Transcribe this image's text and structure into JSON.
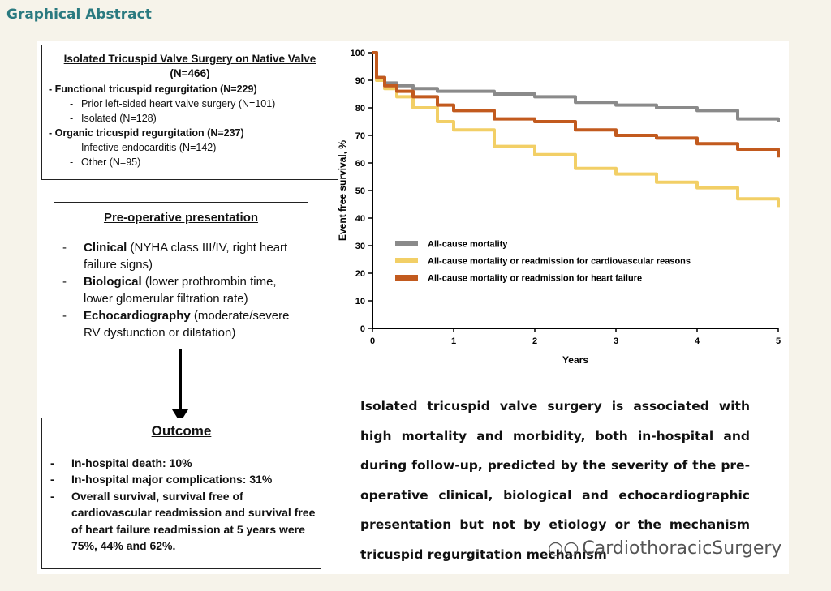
{
  "heading": "Graphical Abstract",
  "cohort": {
    "title": "Isolated Tricuspid Valve Surgery on Native Valve",
    "n": "(N=466)",
    "groups": [
      {
        "label": "- Functional tricuspid regurgitation (N=229)",
        "items": [
          "Prior left-sided heart valve surgery (N=101)",
          "Isolated (N=128)"
        ]
      },
      {
        "label": "- Organic tricuspid regurgitation (N=237)",
        "items": [
          "Infective endocarditis (N=142)",
          "Other (N=95)"
        ]
      }
    ]
  },
  "presentation": {
    "title": "Pre-operative presentation",
    "items": [
      {
        "bold": "Clinical",
        "rest": " (NYHA class III/IV, right heart failure signs)"
      },
      {
        "bold": "Biological",
        "rest": " (lower prothrombin time, lower glomerular filtration rate)"
      },
      {
        "bold": "Echocardiography",
        "rest": " (moderate/severe RV dysfunction or dilatation)"
      }
    ]
  },
  "outcome": {
    "title": "Outcome",
    "items": [
      "In-hospital death: 10%",
      "In-hospital major complications: 31%",
      "Overall survival, survival free of cardiovascular readmission and survival free of heart failure readmission at 5 years were 75%, 44% and 62%."
    ]
  },
  "chart_data": {
    "type": "line",
    "xlabel": "Years",
    "ylabel": "Event free survival, %",
    "xlim": [
      0,
      5
    ],
    "ylim": [
      0,
      100
    ],
    "xticks": [
      "0",
      "1",
      "2",
      "3",
      "4",
      "5"
    ],
    "yticks": [
      "0",
      "10",
      "20",
      "30",
      "40",
      "50",
      "60",
      "70",
      "80",
      "90",
      "100"
    ],
    "legend_position": "center-left",
    "series": [
      {
        "name": "All-cause mortality",
        "color": "#8a8a8a",
        "x": [
          0,
          0.05,
          0.15,
          0.3,
          0.5,
          0.8,
          1.0,
          1.5,
          2.0,
          2.5,
          3.0,
          3.5,
          4.0,
          4.5,
          5.0
        ],
        "y": [
          100,
          91,
          89,
          88,
          87,
          86,
          86,
          85,
          84,
          82,
          81,
          80,
          79,
          76,
          75
        ]
      },
      {
        "name": "All-cause mortality or readmission for cardiovascular reasons",
        "color": "#f2cf66",
        "x": [
          0,
          0.05,
          0.15,
          0.3,
          0.5,
          0.8,
          1.0,
          1.5,
          2.0,
          2.5,
          3.0,
          3.5,
          4.0,
          4.5,
          5.0
        ],
        "y": [
          100,
          90,
          87,
          84,
          80,
          75,
          72,
          66,
          63,
          58,
          56,
          53,
          51,
          47,
          44
        ]
      },
      {
        "name": "All-cause mortality or readmission for heart failure",
        "color": "#c25a1e",
        "x": [
          0,
          0.05,
          0.15,
          0.3,
          0.5,
          0.8,
          1.0,
          1.5,
          2.0,
          2.5,
          3.0,
          3.5,
          4.0,
          4.5,
          5.0
        ],
        "y": [
          100,
          91,
          88,
          86,
          84,
          81,
          79,
          76,
          75,
          72,
          70,
          69,
          67,
          65,
          62
        ]
      }
    ]
  },
  "conclusion": "Isolated tricuspid valve surgery is associated with high mortality and morbidity, both in-hospital and during follow-up, predicted by the severity of the pre-operative clinical, biological and echocardiographic presentation but not by etiology or the mechanism tricuspid regurgitation mechanism",
  "watermark": "CardiothoracicSurgery"
}
